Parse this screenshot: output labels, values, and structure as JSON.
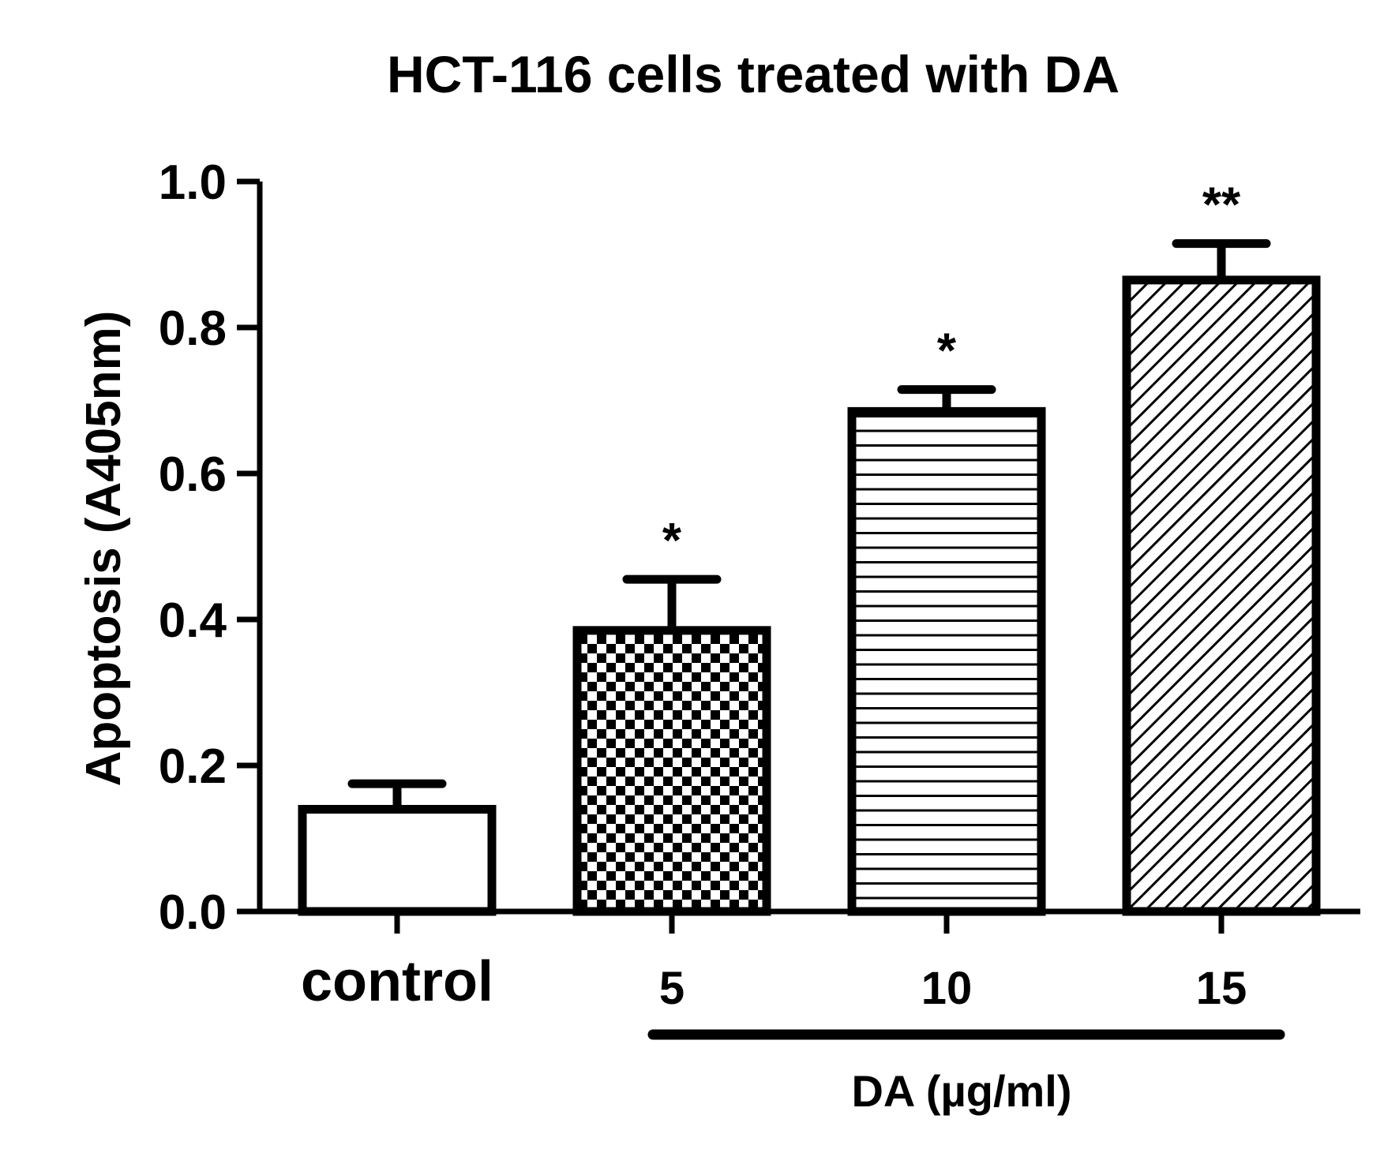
{
  "chart_data": {
    "type": "bar",
    "title": "HCT-116 cells treated with DA",
    "ylabel": "Apoptosis (A405nm)",
    "xlabel": "DA (µg/ml)",
    "categories": [
      "control",
      "5",
      "10",
      "15"
    ],
    "values": [
      0.14,
      0.385,
      0.685,
      0.865
    ],
    "errors": [
      0.035,
      0.07,
      0.03,
      0.05
    ],
    "significance": [
      "",
      "*",
      "*",
      "**"
    ],
    "fill_patterns": [
      "none",
      "checkerboard",
      "horizontal-lines",
      "diagonal-lines"
    ],
    "ylim": [
      0,
      1.0
    ],
    "yticks": [
      "0.0",
      "0.2",
      "0.4",
      "0.6",
      "0.8",
      "1.0"
    ],
    "ytick_values": [
      0,
      0.2,
      0.4,
      0.6,
      0.8,
      1.0
    ],
    "grid": false,
    "bar_color": "#ffffff",
    "edge_color": "#000000"
  }
}
